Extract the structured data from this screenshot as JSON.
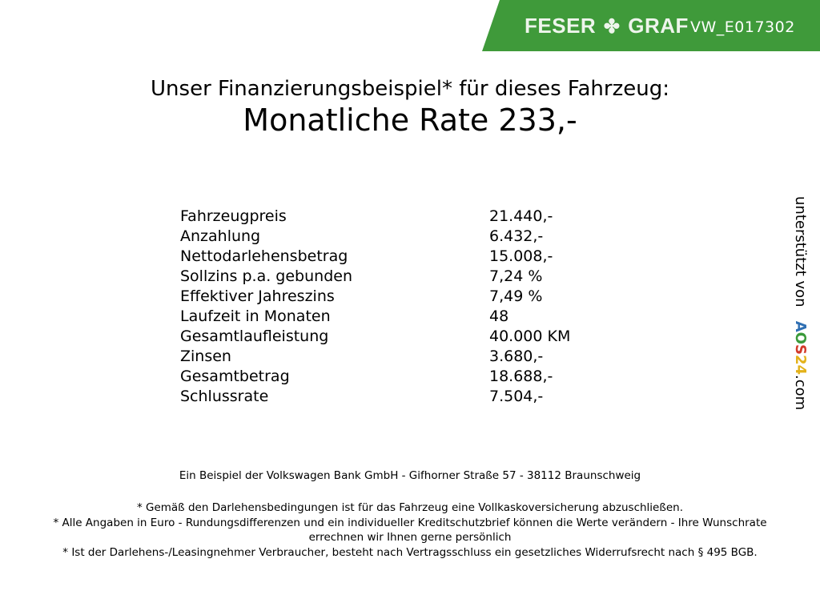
{
  "header": {
    "brand": "FESER GRAF",
    "brand_left": "FESER",
    "brand_right": "GRAF",
    "vehicle_code": "VW_E017302",
    "brand_color": "#3f9a3a"
  },
  "title": {
    "line1": "Unser Finanzierungsbeispiel* für dieses Fahrzeug:",
    "line2": "Monatliche Rate 233,-"
  },
  "finance": [
    {
      "label": "Fahrzeugpreis",
      "value": "21.440,-"
    },
    {
      "label": "Anzahlung",
      "value": "6.432,-"
    },
    {
      "label": "Nettodarlehensbetrag",
      "value": "15.008,-"
    },
    {
      "label": "Sollzins p.a. gebunden",
      "value": "7,24 %"
    },
    {
      "label": "Effektiver Jahreszins",
      "value": "7,49 %"
    },
    {
      "label": "Laufzeit in Monaten",
      "value": "48"
    },
    {
      "label": "Gesamtlaufleistung",
      "value": "40.000 KM"
    },
    {
      "label": "Zinsen",
      "value": "3.680,-"
    },
    {
      "label": "Gesamtbetrag",
      "value": "18.688,-"
    },
    {
      "label": "Schlussrate",
      "value": "7.504,-"
    }
  ],
  "footer": {
    "bank": "Ein Beispiel der Volkswagen Bank GmbH - Gifhorner Straße 57 - 38112 Braunschweig",
    "notes": [
      "* Gemäß den Darlehensbedingungen ist für das Fahrzeug eine Vollkaskoversicherung abzuschließen.",
      "* Alle Angaben in Euro - Rundungsdifferenzen und ein individueller Kreditschutzbrief können die Werte verändern - Ihre Wunschrate errechnen wir Ihnen gerne persönlich",
      "* Ist der Darlehens-/Leasingnehmer Verbraucher, besteht nach Vertragsschluss ein gesetzliches Widerrufsrecht nach § 495 BGB."
    ]
  },
  "side": {
    "prefix": "unterstützt von",
    "logo": "AOS24",
    "suffix": ".com"
  }
}
